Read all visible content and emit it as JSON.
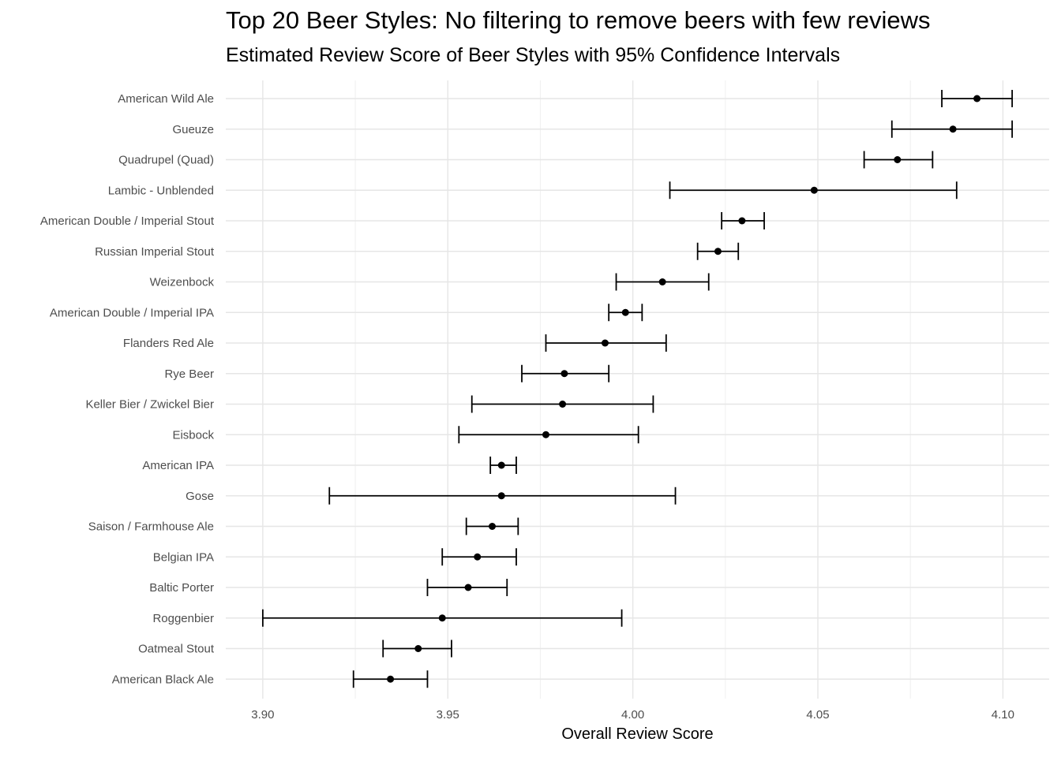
{
  "chart_data": {
    "type": "scatter",
    "title": "Top 20 Beer Styles: No filtering to remove beers with few reviews",
    "subtitle": "Estimated Review Score of Beer Styles with 95% Confidence Intervals",
    "xlabel": "Overall Review Score",
    "ylabel": "",
    "xlim": [
      3.89,
      4.1125
    ],
    "x_ticks": [
      "3.90",
      "3.95",
      "4.00",
      "4.05",
      "4.10"
    ],
    "grid": true,
    "point_color": "#000000",
    "categories": [
      "American Wild Ale",
      "Gueuze",
      "Quadrupel (Quad)",
      "Lambic - Unblended",
      "American Double / Imperial Stout",
      "Russian Imperial Stout",
      "Weizenbock",
      "American Double / Imperial IPA",
      "Flanders Red Ale",
      "Rye Beer",
      "Keller Bier / Zwickel Bier",
      "Eisbock",
      "American IPA",
      "Gose",
      "Saison / Farmhouse Ale",
      "Belgian IPA",
      "Baltic Porter",
      "Roggenbier",
      "Oatmeal Stout",
      "American Black Ale"
    ],
    "estimates": [
      4.093,
      4.0865,
      4.0715,
      4.049,
      4.0295,
      4.023,
      4.008,
      3.998,
      3.9925,
      3.9815,
      3.981,
      3.9765,
      3.9645,
      3.9645,
      3.962,
      3.958,
      3.9555,
      3.9485,
      3.942,
      3.9345
    ],
    "lower": [
      4.0835,
      4.07,
      4.0625,
      4.01,
      4.024,
      4.0175,
      3.9955,
      3.9935,
      3.9765,
      3.97,
      3.9565,
      3.953,
      3.9615,
      3.918,
      3.955,
      3.9485,
      3.9445,
      3.9,
      3.9325,
      3.9245
    ],
    "upper": [
      4.1025,
      4.1025,
      4.081,
      4.0875,
      4.0355,
      4.0285,
      4.0205,
      4.0025,
      4.009,
      3.9935,
      4.0055,
      4.0015,
      3.9685,
      4.0115,
      3.969,
      3.9685,
      3.966,
      3.997,
      3.951,
      3.9445
    ]
  }
}
